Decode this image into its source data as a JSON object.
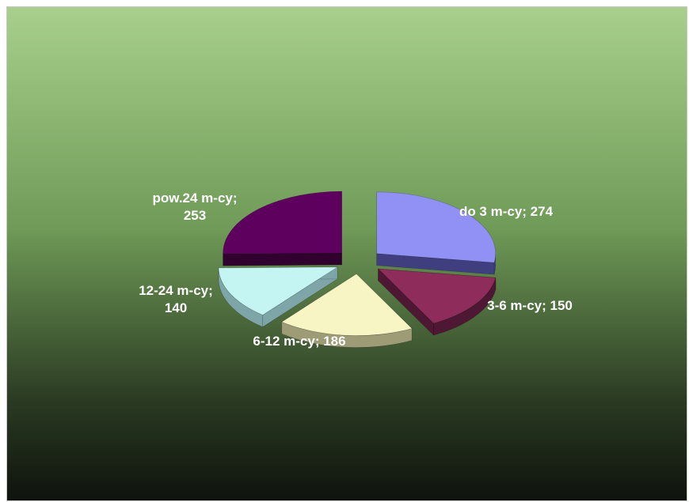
{
  "chart_data": {
    "type": "pie",
    "style": "3d-exploded",
    "categories": [
      "do 3 m-cy",
      "3-6 m-cy",
      "6-12 m-cy",
      "12-24 m-cy",
      "pow.24 m-cy"
    ],
    "values": [
      274,
      150,
      186,
      140,
      253
    ],
    "labels": [
      {
        "lines": [
          "do 3 m-cy; 274"
        ]
      },
      {
        "lines": [
          "3-6 m-cy; 150"
        ]
      },
      {
        "lines": [
          "6-12 m-cy; 186"
        ]
      },
      {
        "lines": [
          "12-24 m-cy;",
          "140"
        ]
      },
      {
        "lines": [
          "pow.24 m-cy;",
          "253"
        ]
      }
    ],
    "colors": [
      "#9191f5",
      "#8e2d5c",
      "#f7f5c3",
      "#c5f5f3",
      "#5e005e"
    ],
    "side_colors": [
      "#3f3f80",
      "#4e1733",
      "#9e9c76",
      "#7ea6a8",
      "#30002f"
    ],
    "background_gradient": [
      "#a8d08c",
      "#6f9a57",
      "#2a3a22",
      "#0f130d"
    ],
    "title": "",
    "legend": "none"
  }
}
